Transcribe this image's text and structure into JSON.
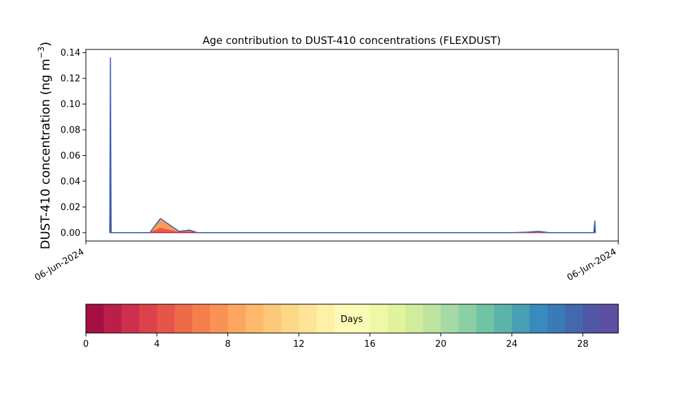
{
  "chart_data": {
    "type": "area",
    "title": "Age contribution to DUST-410 concentrations (FLEXDUST)",
    "xlabel": "",
    "ylabel": "DUST-410 concentration (ng m",
    "ylabel_sup": "−3",
    "ylabel_end": ")",
    "ylim": [
      -0.0065,
      0.1425
    ],
    "xlim": [
      0,
      100
    ],
    "x_tick_labels": [
      {
        "x": 0,
        "label": "06-Jun-2024"
      },
      {
        "x": 100,
        "label": "06-Jun-2024"
      }
    ],
    "y_ticks": [
      0.0,
      0.02,
      0.04,
      0.06,
      0.08,
      0.1,
      0.12,
      0.14
    ],
    "y_tick_labels": [
      "0.00",
      "0.02",
      "0.04",
      "0.06",
      "0.08",
      "0.10",
      "0.12",
      "0.14"
    ],
    "grid": false,
    "total_series": {
      "color": "#3f60ad",
      "points": [
        [
          4.5,
          0.0
        ],
        [
          4.6,
          0.136
        ],
        [
          4.75,
          0.0
        ],
        [
          7.5,
          0.0
        ],
        [
          12.0,
          0.0
        ],
        [
          14.0,
          0.011
        ],
        [
          17.5,
          0.001
        ],
        [
          19.5,
          0.002
        ],
        [
          21.0,
          0.0
        ],
        [
          24.0,
          0.0
        ],
        [
          80.0,
          0.0
        ],
        [
          83.0,
          0.0004
        ],
        [
          85.0,
          0.001
        ],
        [
          87.0,
          0.0
        ],
        [
          95.0,
          0.0
        ],
        [
          95.4,
          0.0
        ],
        [
          95.6,
          0.009
        ],
        [
          95.7,
          0.0
        ]
      ]
    },
    "age_contributions": [
      {
        "age_days": 0,
        "color": "#a50f44",
        "points": [
          [
            4.5,
            0.0
          ],
          [
            4.6,
            0.083
          ],
          [
            4.75,
            0.0
          ],
          [
            95.4,
            0.0
          ],
          [
            95.6,
            0.006
          ],
          [
            95.7,
            0.0
          ]
        ]
      },
      {
        "age_days": 1,
        "color": "#c2294a",
        "points": [
          [
            4.5,
            0.0
          ],
          [
            4.6,
            0.103
          ],
          [
            4.75,
            0.0
          ]
        ]
      },
      {
        "age_days": 4,
        "color": "#e85a47",
        "points": [
          [
            12.0,
            0.0
          ],
          [
            14.0,
            0.0035
          ],
          [
            17.5,
            0.0003
          ],
          [
            19.5,
            0.001
          ],
          [
            21.0,
            0.0
          ]
        ]
      },
      {
        "age_days": 7,
        "color": "#fa9b58",
        "points": [
          [
            12.0,
            0.0
          ],
          [
            14.0,
            0.01
          ],
          [
            17.5,
            0.0008
          ],
          [
            19.5,
            0.0017
          ],
          [
            21.0,
            0.0
          ],
          [
            83.0,
            0.0002
          ],
          [
            85.0,
            0.0007
          ],
          [
            87.0,
            0.0
          ]
        ]
      }
    ],
    "colorbar": {
      "label": "Days",
      "min": 0,
      "max": 30,
      "ticks": [
        0,
        4,
        8,
        12,
        16,
        20,
        24,
        28
      ],
      "tick_labels": [
        "0",
        "4",
        "8",
        "12",
        "16",
        "20",
        "24",
        "28"
      ],
      "colors": [
        "#a50f44",
        "#b91f48",
        "#cd2f4d",
        "#dc4249",
        "#e55549",
        "#ef6a48",
        "#f57f4c",
        "#f99355",
        "#fca65f",
        "#feb96b",
        "#fdc879",
        "#fed788",
        "#fee496",
        "#fef0a6",
        "#fefab8",
        "#f8fcb4",
        "#eef8a6",
        "#e2f39e",
        "#d1ec9c",
        "#bde49f",
        "#a5daa4",
        "#8bd0a4",
        "#70c4a4",
        "#5ab4ac",
        "#47a0b3",
        "#388bbb",
        "#3a7ab7",
        "#4468ae",
        "#5057a6",
        "#5e4fa2"
      ]
    }
  }
}
